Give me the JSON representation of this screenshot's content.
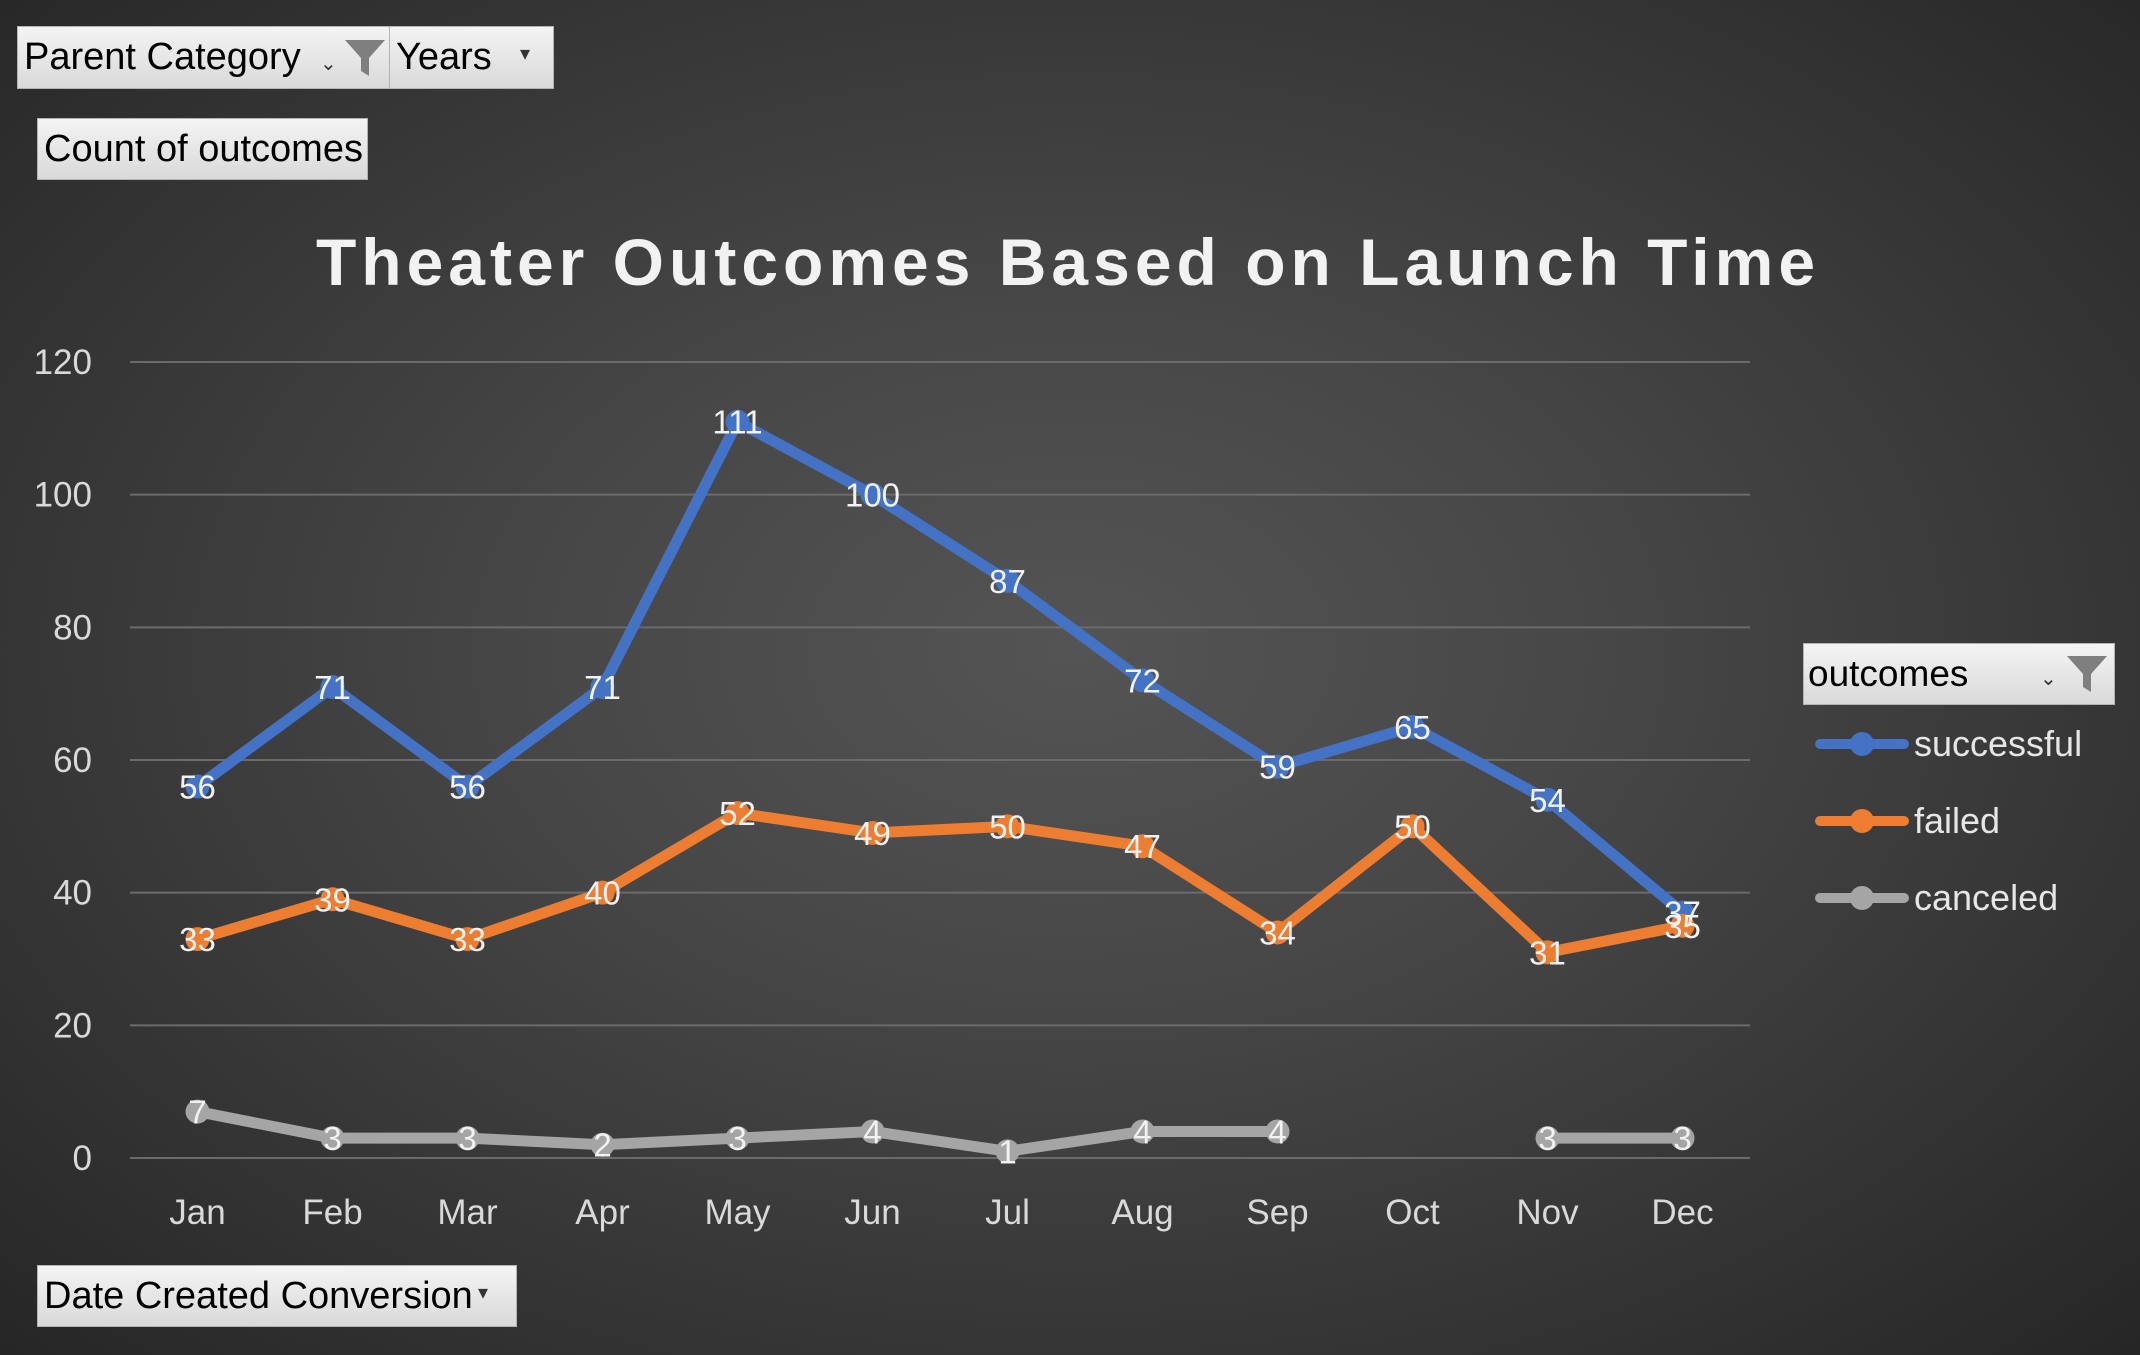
{
  "filters": {
    "parent_category": {
      "label": "Parent Category",
      "icon": "filter-funnel-icon"
    },
    "years": {
      "label": "Years"
    },
    "count_of_outcomes": {
      "label": "Count of outcomes"
    },
    "date_created": {
      "label": "Date Created Conversion"
    }
  },
  "legend": {
    "header": "outcomes",
    "icon": "filter-funnel-icon"
  },
  "chart_data": {
    "type": "line",
    "title": "Theater Outcomes Based on Launch Time",
    "xlabel": "",
    "ylabel": "",
    "categories": [
      "Jan",
      "Feb",
      "Mar",
      "Apr",
      "May",
      "Jun",
      "Jul",
      "Aug",
      "Sep",
      "Oct",
      "Nov",
      "Dec"
    ],
    "ylim": [
      0,
      120
    ],
    "yticks": [
      0,
      20,
      40,
      60,
      80,
      100,
      120
    ],
    "grid": true,
    "legend_position": "right",
    "series": [
      {
        "name": "successful",
        "color": "#4472C4",
        "values": [
          56,
          71,
          56,
          71,
          111,
          100,
          87,
          72,
          59,
          65,
          54,
          37
        ]
      },
      {
        "name": "failed",
        "color": "#ED7D31",
        "values": [
          33,
          39,
          33,
          40,
          52,
          49,
          50,
          47,
          34,
          50,
          31,
          35
        ]
      },
      {
        "name": "canceled",
        "color": "#A5A5A5",
        "values": [
          7,
          3,
          3,
          2,
          3,
          4,
          1,
          4,
          4,
          null,
          3,
          3
        ]
      }
    ]
  }
}
